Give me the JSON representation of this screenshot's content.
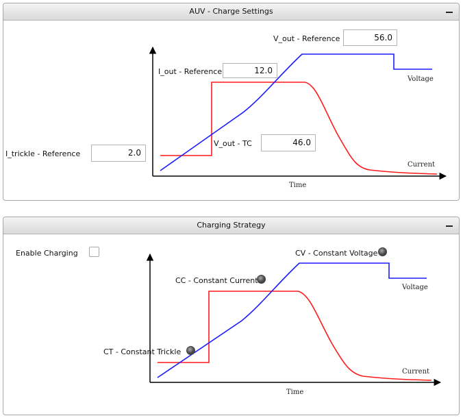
{
  "charge_settings": {
    "title": "AUV - Charge Settings",
    "fields": {
      "v_out_reference": {
        "label": "V_out - Reference",
        "value": "56.0"
      },
      "i_out_reference": {
        "label": "I_out - Reference",
        "value": "12.0"
      },
      "v_out_tc": {
        "label": "V_out - TC",
        "value": "46.0"
      },
      "i_trickle_reference": {
        "label": "I_trickle - Reference",
        "value": "2.0"
      }
    },
    "chart": {
      "voltage_label": "Voltage",
      "current_label": "Current",
      "x_label": "Time"
    }
  },
  "charging_strategy": {
    "title": "Charging Strategy",
    "enable_charging": {
      "label": "Enable Charging",
      "checked": false
    },
    "indicators": {
      "cv": {
        "label": "CV - Constant Voltage"
      },
      "cc": {
        "label": "CC - Constant Current"
      },
      "ct": {
        "label": "CT - Constant Trickle"
      }
    },
    "chart": {
      "voltage_label": "Voltage",
      "current_label": "Current",
      "x_label": "Time"
    }
  },
  "colors": {
    "voltage": "#1a1aff",
    "current": "#ff1a1a",
    "axis": "#000000"
  }
}
